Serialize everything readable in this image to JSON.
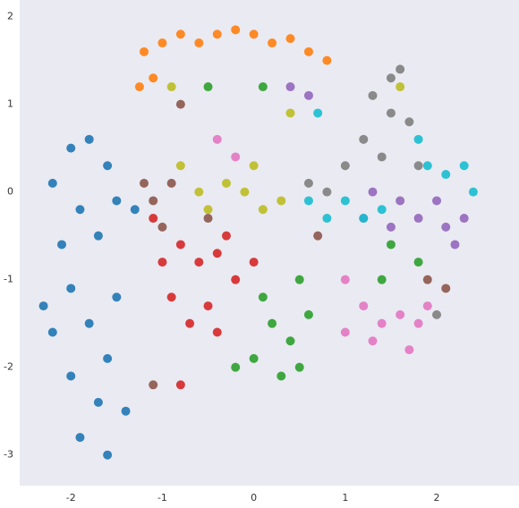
{
  "chart_data": {
    "type": "scatter",
    "xlim": [
      -2.56,
      2.9
    ],
    "ylim": [
      -3.35,
      2.19
    ],
    "xticks": [
      -2,
      -1,
      0,
      1,
      2
    ],
    "yticks": [
      -3,
      -2,
      -1,
      0,
      1,
      2
    ],
    "grid": false,
    "series": [
      {
        "color": "#1f77b4",
        "x": [
          -2.0,
          -1.8,
          -1.6,
          -2.2,
          -1.9,
          -1.5,
          -2.1,
          -1.7,
          -1.3,
          -2.3,
          -2.0,
          -1.8,
          -2.2,
          -1.6,
          -2.0,
          -1.7,
          -1.9,
          -1.6,
          -1.4,
          -1.5
        ],
        "y": [
          0.5,
          0.6,
          0.3,
          0.1,
          -0.2,
          -0.1,
          -0.6,
          -0.5,
          -0.2,
          -1.3,
          -1.1,
          -1.5,
          -1.6,
          -1.9,
          -2.1,
          -2.4,
          -2.8,
          -3.0,
          -2.5,
          -1.2
        ]
      },
      {
        "color": "#ff7f0e",
        "x": [
          -1.2,
          -1.1,
          -1.0,
          -0.8,
          -0.6,
          -0.4,
          -0.2,
          0.0,
          0.2,
          0.4,
          0.6,
          0.8,
          -1.25
        ],
        "y": [
          1.6,
          1.3,
          1.7,
          1.8,
          1.7,
          1.8,
          1.85,
          1.8,
          1.7,
          1.75,
          1.6,
          1.5,
          1.2
        ]
      },
      {
        "color": "#2ca02c",
        "x": [
          0.0,
          0.3,
          0.5,
          0.4,
          0.2,
          0.1,
          0.6,
          0.5,
          -0.2,
          1.4,
          1.5,
          1.8,
          0.1,
          -0.5
        ],
        "y": [
          -1.9,
          -2.1,
          -2.0,
          -1.7,
          -1.5,
          -1.2,
          -1.4,
          -1.0,
          -2.0,
          -1.0,
          -0.6,
          -0.8,
          1.2,
          1.2
        ]
      },
      {
        "color": "#d62728",
        "x": [
          -1.0,
          -0.8,
          -0.6,
          -0.4,
          -0.2,
          -0.5,
          -0.7,
          -0.9,
          -0.3,
          0.0,
          -1.1,
          -0.8,
          -0.4
        ],
        "y": [
          -0.8,
          -0.6,
          -0.8,
          -0.7,
          -1.0,
          -1.3,
          -1.5,
          -1.2,
          -0.5,
          -0.8,
          -0.3,
          -2.2,
          -1.6
        ]
      },
      {
        "color": "#9467bd",
        "x": [
          1.2,
          1.5,
          1.8,
          2.1,
          2.3,
          1.6,
          2.0,
          0.4,
          0.6,
          1.3,
          2.2
        ],
        "y": [
          -0.3,
          -0.4,
          -0.3,
          -0.4,
          -0.3,
          -0.1,
          -0.1,
          1.2,
          1.1,
          0.0,
          -0.6
        ]
      },
      {
        "color": "#8c564b",
        "x": [
          -1.1,
          -1.2,
          -0.9,
          -1.0,
          -0.5,
          1.9,
          2.1,
          -1.1,
          -0.8,
          0.7
        ],
        "y": [
          -0.1,
          0.1,
          0.1,
          -0.4,
          -0.3,
          -1.0,
          -1.1,
          -2.2,
          1.0,
          -0.5
        ]
      },
      {
        "color": "#e377c2",
        "x": [
          1.0,
          1.2,
          1.4,
          1.6,
          1.8,
          1.7,
          1.3,
          1.0,
          1.9,
          -0.4,
          -0.2
        ],
        "y": [
          -1.0,
          -1.3,
          -1.5,
          -1.4,
          -1.5,
          -1.8,
          -1.7,
          -1.6,
          -1.3,
          0.6,
          0.4
        ]
      },
      {
        "color": "#7f7f7f",
        "x": [
          1.3,
          1.5,
          1.6,
          1.5,
          1.7,
          1.2,
          1.0,
          0.8,
          0.6,
          1.4,
          1.8,
          2.0
        ],
        "y": [
          1.1,
          1.3,
          1.4,
          0.9,
          0.8,
          0.6,
          0.3,
          0.0,
          0.1,
          0.4,
          0.3,
          -1.4
        ]
      },
      {
        "color": "#bcbd22",
        "x": [
          -0.6,
          -0.3,
          -0.1,
          0.1,
          0.3,
          -0.8,
          -0.5,
          0.0,
          1.6,
          0.4,
          -0.9
        ],
        "y": [
          0.0,
          0.1,
          0.0,
          -0.2,
          -0.1,
          0.3,
          -0.2,
          0.3,
          1.2,
          0.9,
          1.2
        ]
      },
      {
        "color": "#17becf",
        "x": [
          0.6,
          0.8,
          1.0,
          1.2,
          1.4,
          1.9,
          2.1,
          2.3,
          2.4,
          1.8,
          0.7
        ],
        "y": [
          -0.1,
          -0.3,
          -0.1,
          -0.3,
          -0.2,
          0.3,
          0.2,
          0.3,
          0.0,
          0.6,
          0.9
        ]
      }
    ]
  }
}
